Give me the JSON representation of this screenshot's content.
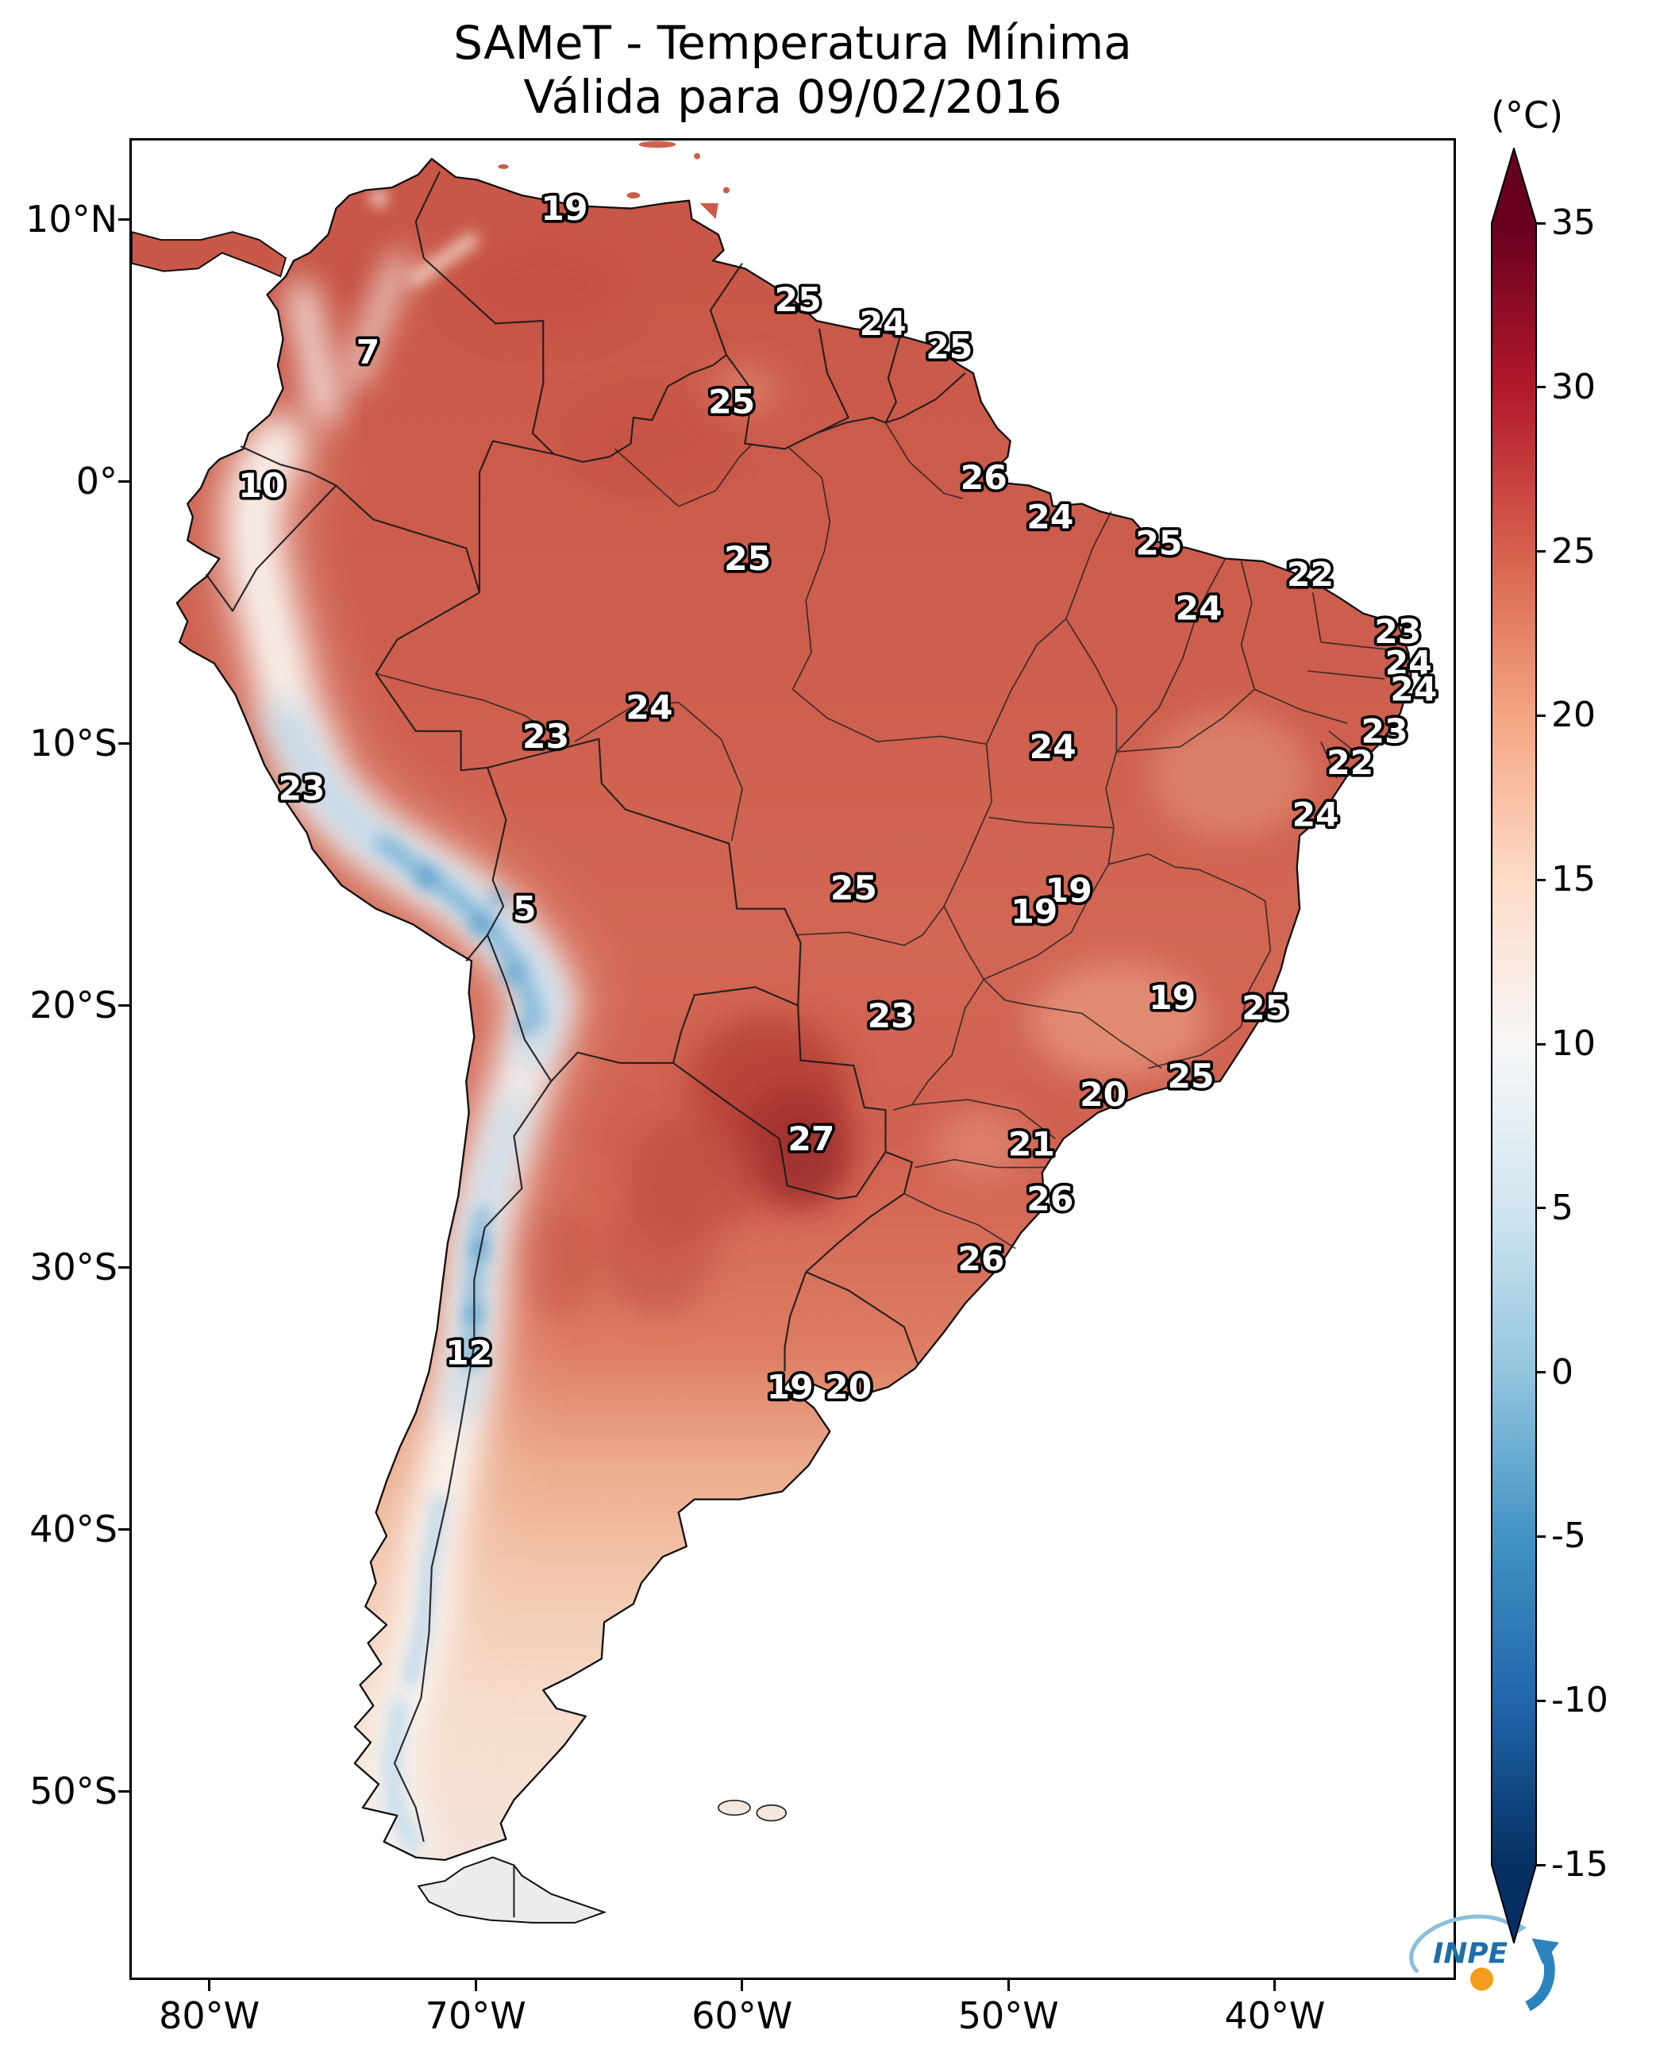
{
  "title": {
    "line1": "SAMeT - Temperatura Mínima",
    "line2": "Válida para 09/02/2016"
  },
  "colorbar": {
    "unit": "(°C)",
    "vmin": -15,
    "vmax": 35,
    "tick_values": [
      35,
      30,
      25,
      20,
      15,
      10,
      5,
      0,
      -5,
      -10,
      -15
    ],
    "colors": [
      "#67001f",
      "#b2182b",
      "#d6604d",
      "#f4a582",
      "#fddbc7",
      "#f7f7f7",
      "#d1e5f0",
      "#92c5de",
      "#4393c3",
      "#2166ac",
      "#053061"
    ]
  },
  "axes": {
    "lon_range": [
      -83,
      -33.2
    ],
    "lat_range": [
      13.1,
      -57.2
    ],
    "lat_ticks": [
      {
        "value": 10,
        "label": "10°N"
      },
      {
        "value": 0,
        "label": "0°"
      },
      {
        "value": -10,
        "label": "10°S"
      },
      {
        "value": -20,
        "label": "20°S"
      },
      {
        "value": -30,
        "label": "30°S"
      },
      {
        "value": -40,
        "label": "40°S"
      },
      {
        "value": -50,
        "label": "50°S"
      }
    ],
    "lon_ticks": [
      {
        "value": -80,
        "label": "80°W"
      },
      {
        "value": -70,
        "label": "70°W"
      },
      {
        "value": -60,
        "label": "60°W"
      },
      {
        "value": -50,
        "label": "50°W"
      },
      {
        "value": -40,
        "label": "40°W"
      }
    ]
  },
  "stations": [
    {
      "t": 19,
      "lon": -66.7,
      "lat": 10.5
    },
    {
      "t": 25,
      "lon": -57.9,
      "lat": 7.0
    },
    {
      "t": 24,
      "lon": -54.7,
      "lat": 6.1
    },
    {
      "t": 25,
      "lon": -52.2,
      "lat": 5.2
    },
    {
      "t": 7,
      "lon": -74.1,
      "lat": 5.0
    },
    {
      "t": 25,
      "lon": -60.4,
      "lat": 3.1
    },
    {
      "t": 10,
      "lon": -78.1,
      "lat": -0.1
    },
    {
      "t": 26,
      "lon": -50.9,
      "lat": 0.2
    },
    {
      "t": 24,
      "lon": -48.4,
      "lat": -1.3
    },
    {
      "t": 25,
      "lon": -44.3,
      "lat": -2.3
    },
    {
      "t": 22,
      "lon": -38.6,
      "lat": -3.5
    },
    {
      "t": 25,
      "lon": -59.8,
      "lat": -2.9
    },
    {
      "t": 24,
      "lon": -42.8,
      "lat": -4.8
    },
    {
      "t": 23,
      "lon": -35.3,
      "lat": -5.7
    },
    {
      "t": 24,
      "lon": -34.9,
      "lat": -6.9
    },
    {
      "t": 24,
      "lon": -34.7,
      "lat": -7.9
    },
    {
      "t": 24,
      "lon": -63.5,
      "lat": -8.6
    },
    {
      "t": 23,
      "lon": -67.4,
      "lat": -9.7
    },
    {
      "t": 23,
      "lon": -35.8,
      "lat": -9.5
    },
    {
      "t": 22,
      "lon": -37.1,
      "lat": -10.7
    },
    {
      "t": 24,
      "lon": -48.3,
      "lat": -10.1
    },
    {
      "t": 23,
      "lon": -76.6,
      "lat": -11.7
    },
    {
      "t": 24,
      "lon": -38.4,
      "lat": -12.7
    },
    {
      "t": 5,
      "lon": -68.2,
      "lat": -16.3
    },
    {
      "t": 25,
      "lon": -55.8,
      "lat": -15.5
    },
    {
      "t": 19,
      "lon": -47.7,
      "lat": -15.6
    },
    {
      "t": 19,
      "lon": -49.0,
      "lat": -16.4
    },
    {
      "t": 23,
      "lon": -54.4,
      "lat": -20.4
    },
    {
      "t": 19,
      "lon": -43.8,
      "lat": -19.7
    },
    {
      "t": 25,
      "lon": -40.3,
      "lat": -20.1
    },
    {
      "t": 20,
      "lon": -46.4,
      "lat": -23.4
    },
    {
      "t": 25,
      "lon": -43.1,
      "lat": -22.7
    },
    {
      "t": 27,
      "lon": -57.4,
      "lat": -25.1
    },
    {
      "t": 21,
      "lon": -49.1,
      "lat": -25.3
    },
    {
      "t": 26,
      "lon": -48.4,
      "lat": -27.4
    },
    {
      "t": 26,
      "lon": -51.0,
      "lat": -29.7
    },
    {
      "t": 12,
      "lon": -70.3,
      "lat": -33.3
    },
    {
      "t": 19,
      "lon": -58.2,
      "lat": -34.6
    },
    {
      "t": 20,
      "lon": -56.0,
      "lat": -34.6
    }
  ],
  "logo": {
    "text": "INPE"
  }
}
